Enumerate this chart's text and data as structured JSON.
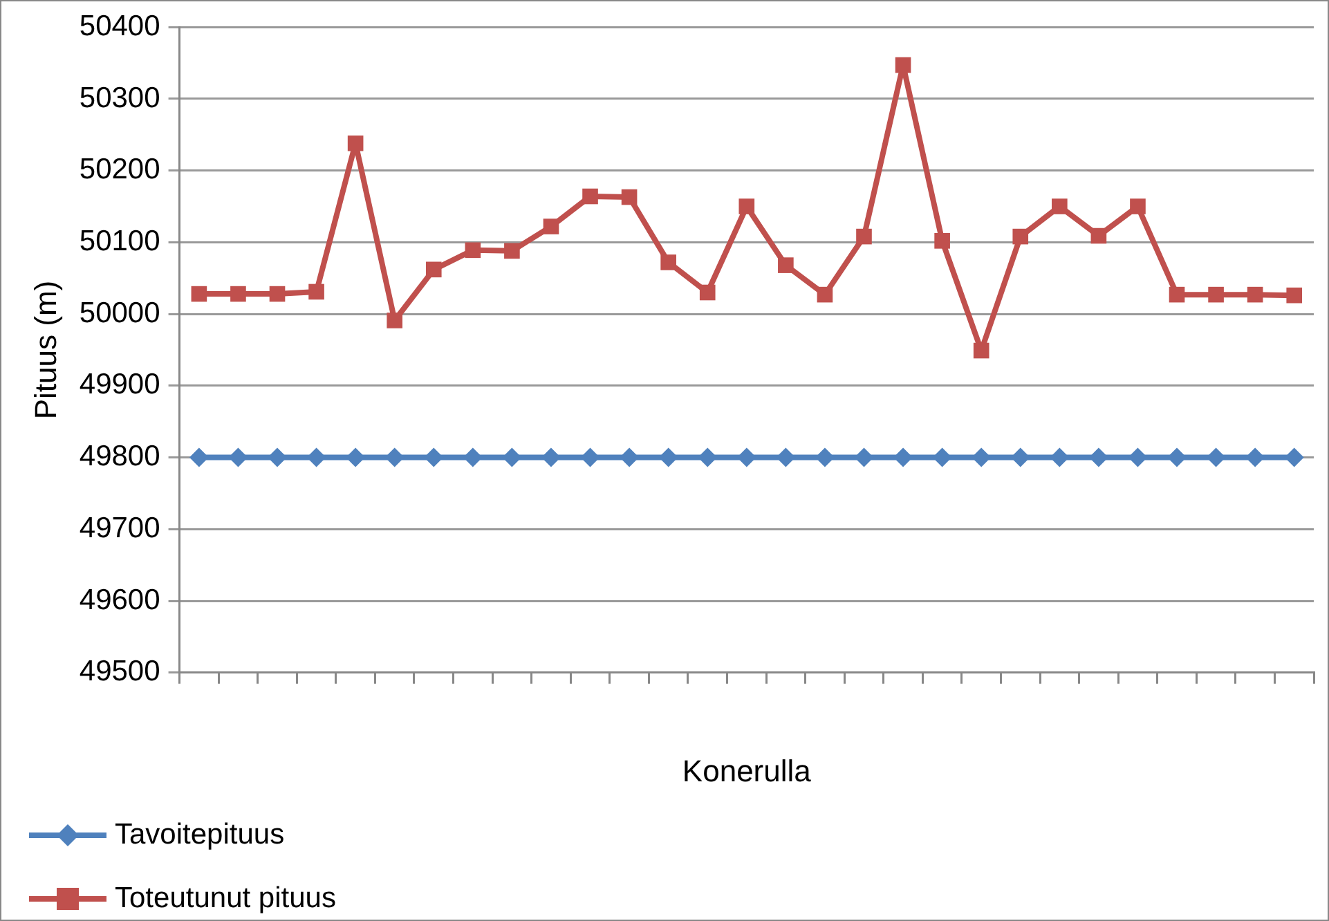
{
  "chart_data": {
    "type": "line",
    "xlabel": "Konerulla",
    "ylabel": "Pituus (m)",
    "categories": [
      null,
      null,
      null,
      null,
      null,
      null,
      null,
      null,
      null,
      null,
      null,
      null,
      null,
      null,
      null,
      null,
      null,
      null,
      null,
      null,
      null,
      null,
      null,
      null,
      null,
      null,
      null,
      null,
      null
    ],
    "series": [
      {
        "name": "Tavoitepituus",
        "color": "#4f81bd",
        "marker": "diamond",
        "values": [
          49800,
          49800,
          49800,
          49800,
          49800,
          49800,
          49800,
          49800,
          49800,
          49800,
          49800,
          49800,
          49800,
          49800,
          49800,
          49800,
          49800,
          49800,
          49800,
          49800,
          49800,
          49800,
          49800,
          49800,
          49800,
          49800,
          49800,
          49800,
          49800
        ]
      },
      {
        "name": "Toteutunut pituus",
        "color": "#c0504d",
        "marker": "square",
        "values": [
          50028,
          50028,
          50028,
          50031,
          50238,
          49991,
          50062,
          50089,
          50088,
          50122,
          50164,
          50163,
          50072,
          50030,
          50150,
          50068,
          50027,
          50108,
          50347,
          50102,
          49949,
          50108,
          50150,
          50109,
          50150,
          50027,
          50027,
          50027,
          50026
        ]
      }
    ],
    "ylim": [
      49500,
      50400
    ],
    "yticks": [
      49500,
      49600,
      49700,
      49800,
      49900,
      50000,
      50100,
      50200,
      50300,
      50400
    ],
    "grid": "y",
    "legend": "bottom",
    "line_style": "solid"
  }
}
